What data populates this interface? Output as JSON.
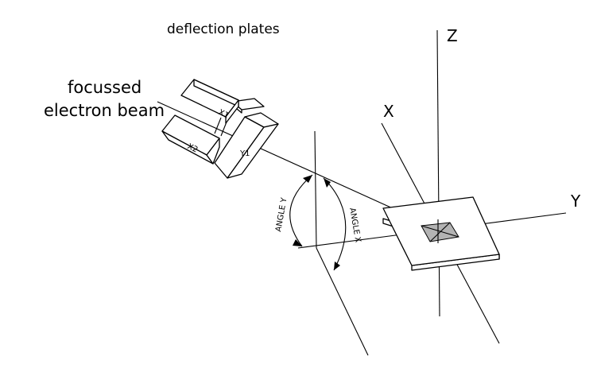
{
  "labels": {
    "deflection_plates": "deflection plates",
    "beam_line1": "focussed",
    "beam_line2": "electron beam",
    "axis_z": "Z",
    "axis_x": "X",
    "axis_y": "Y",
    "plate_x1": "X1",
    "plate_x2": "X2",
    "plate_y1": "Y1",
    "angle_y": "ANGLE Y",
    "angle_x": "ANGLE X"
  },
  "colors": {
    "line": "#000000",
    "target_spot": "#b3b3b3",
    "background": "#ffffff"
  }
}
